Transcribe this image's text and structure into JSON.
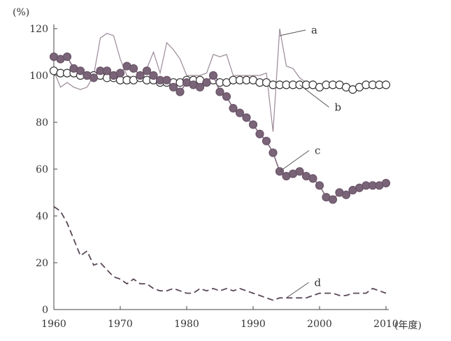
{
  "chart_data": {
    "type": "line",
    "title": "",
    "ylabel": "(%)",
    "xlabel": "(年度)",
    "xlim": [
      1960,
      2010
    ],
    "ylim": [
      0,
      120
    ],
    "xticks": [
      1960,
      1970,
      1980,
      1990,
      2000,
      2010
    ],
    "yticks": [
      0,
      20,
      40,
      60,
      80,
      100,
      120
    ],
    "xtick_labels": [
      "1960",
      "1970",
      "1980",
      "1990",
      "2000",
      "2010"
    ],
    "ytick_labels": [
      "0",
      "20",
      "40",
      "60",
      "80",
      "100",
      "120"
    ],
    "grid": false,
    "x": [
      1960,
      1961,
      1962,
      1963,
      1964,
      1965,
      1966,
      1967,
      1968,
      1969,
      1970,
      1971,
      1972,
      1973,
      1974,
      1975,
      1976,
      1977,
      1978,
      1979,
      1980,
      1981,
      1982,
      1983,
      1984,
      1985,
      1986,
      1987,
      1988,
      1989,
      1990,
      1991,
      1992,
      1993,
      1994,
      1995,
      1996,
      1997,
      1998,
      1999,
      2000,
      2001,
      2002,
      2003,
      2004,
      2005,
      2006,
      2007,
      2008,
      2009,
      2010
    ],
    "series": [
      {
        "name": "a",
        "style": "thin-line",
        "color": "#9a8a98",
        "values": [
          102,
          95,
          97,
          95,
          94,
          95,
          100,
          116,
          118,
          117,
          107,
          100,
          99,
          100,
          103,
          110,
          101,
          114,
          111,
          107,
          100,
          100,
          100,
          101,
          109,
          108,
          109,
          100,
          100,
          100,
          100,
          100,
          101,
          76,
          120,
          104,
          103,
          99,
          97,
          96,
          96,
          96,
          96,
          96,
          96,
          95,
          95,
          96,
          96,
          96,
          96
        ],
        "annotation": {
          "label": "a",
          "year": 1994,
          "value": 117
        }
      },
      {
        "name": "b",
        "style": "open-circles",
        "color": "#3a3238",
        "values": [
          102,
          101,
          101,
          101,
          100,
          100,
          100,
          100,
          99,
          99,
          98,
          98,
          98,
          99,
          98,
          98,
          97,
          97,
          97,
          97,
          98,
          98,
          98,
          97,
          98,
          97,
          97,
          98,
          98,
          98,
          98,
          97,
          97,
          96,
          96,
          96,
          96,
          96,
          96,
          96,
          95,
          96,
          96,
          96,
          95,
          94,
          95,
          96,
          96,
          96,
          96
        ],
        "annotation": {
          "label": "b",
          "year": 1997,
          "value": 96
        }
      },
      {
        "name": "c",
        "style": "filled-circles",
        "color": "#7a6478",
        "values": [
          108,
          107,
          108,
          103,
          102,
          100,
          99,
          102,
          102,
          100,
          101,
          104,
          103,
          100,
          102,
          100,
          98,
          98,
          95,
          93,
          97,
          96,
          95,
          97,
          100,
          93,
          91,
          86,
          84,
          82,
          79,
          75,
          72,
          67,
          59,
          57,
          58,
          59,
          57,
          56,
          53,
          48,
          47,
          50,
          49,
          51,
          52,
          53,
          53,
          53,
          54
        ],
        "annotation": {
          "label": "c",
          "year": 1994,
          "value": 59
        }
      },
      {
        "name": "d",
        "style": "dashed-line",
        "color": "#5a4858",
        "values": [
          44,
          42,
          37,
          30,
          23,
          25,
          19,
          20,
          17,
          14,
          13,
          11,
          13,
          11,
          11,
          9,
          8,
          8,
          9,
          8,
          7,
          7,
          9,
          8,
          9,
          8,
          9,
          8,
          9,
          8,
          7,
          6,
          5,
          4,
          5,
          5,
          5,
          5,
          5,
          6,
          7,
          7,
          7,
          6,
          6,
          7,
          7,
          7,
          9,
          8,
          7
        ],
        "annotation": {
          "label": "d",
          "year": 1995,
          "value": 5
        }
      }
    ]
  }
}
